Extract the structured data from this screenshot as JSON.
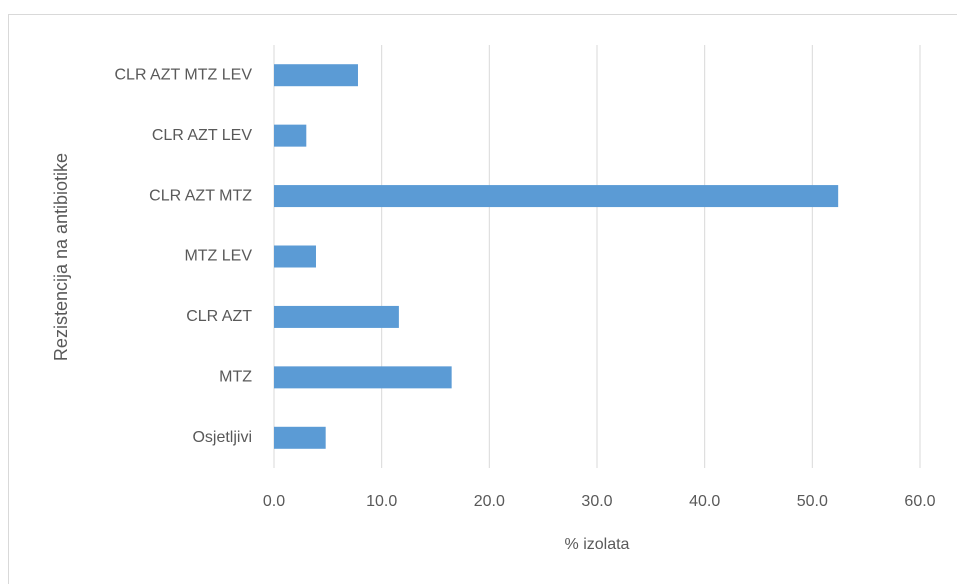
{
  "chart_data": {
    "type": "bar",
    "orientation": "horizontal",
    "x_label": "% izolata",
    "y_label": "Rezistencija na antibiotike",
    "categories": [
      "Osjetljivi",
      "MTZ",
      "CLR AZT",
      "MTZ LEV",
      "CLR AZT MTZ",
      "CLR AZT LEV",
      "CLR AZT MTZ LEV"
    ],
    "values": [
      4.8,
      16.5,
      11.6,
      3.9,
      52.4,
      3.0,
      7.8
    ],
    "color": "#5b9bd5",
    "xlim": [
      0,
      60
    ],
    "xticks": [
      {
        "value": 0,
        "label": "0.0"
      },
      {
        "value": 10,
        "label": "10.0"
      },
      {
        "value": 20,
        "label": "20.0"
      },
      {
        "value": 30,
        "label": "30.0"
      },
      {
        "value": 40,
        "label": "40.0"
      },
      {
        "value": 50,
        "label": "50.0"
      },
      {
        "value": 60,
        "label": "60.0"
      }
    ],
    "grid": true
  }
}
